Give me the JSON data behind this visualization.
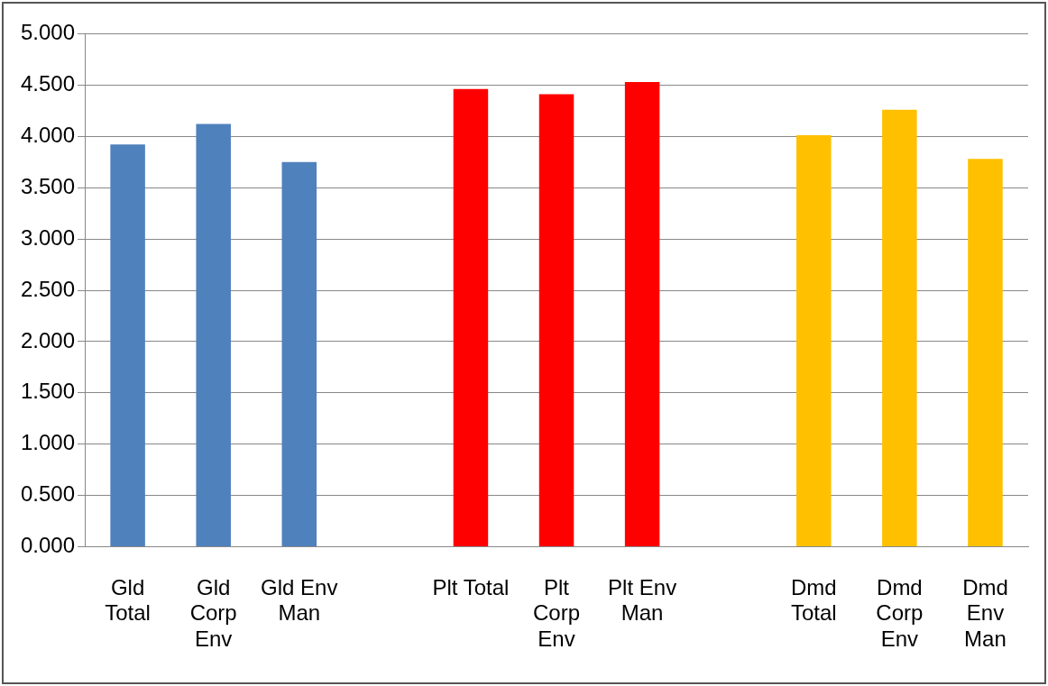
{
  "chart_data": {
    "type": "bar",
    "categories": [
      "Gld Total",
      "Gld Corp Env",
      "Gld Env Man",
      null,
      "Plt Total",
      "Plt Corp Env",
      "Plt Env Man",
      null,
      "Dmd Total",
      "Dmd Corp Env",
      "Dmd Env Man"
    ],
    "values": [
      3.92,
      4.12,
      3.75,
      null,
      4.46,
      4.41,
      4.53,
      null,
      4.01,
      4.26,
      3.78
    ],
    "colors": [
      "#4f81bd",
      "#4f81bd",
      "#4f81bd",
      null,
      "#ff0000",
      "#ff0000",
      "#ff0000",
      null,
      "#ffc000",
      "#ffc000",
      "#ffc000"
    ],
    "ylim": [
      0,
      5
    ],
    "yticks": [
      {
        "value": 0,
        "label": "0.000"
      },
      {
        "value": 0.5,
        "label": "0.500"
      },
      {
        "value": 1,
        "label": "1.000"
      },
      {
        "value": 1.5,
        "label": "1.500"
      },
      {
        "value": 2,
        "label": "2.000"
      },
      {
        "value": 2.5,
        "label": "2.500"
      },
      {
        "value": 3,
        "label": "3.000"
      },
      {
        "value": 3.5,
        "label": "3.500"
      },
      {
        "value": 4,
        "label": "4.000"
      },
      {
        "value": 4.5,
        "label": "4.500"
      },
      {
        "value": 5,
        "label": "5.000"
      }
    ],
    "grid": "y",
    "legend": false
  }
}
